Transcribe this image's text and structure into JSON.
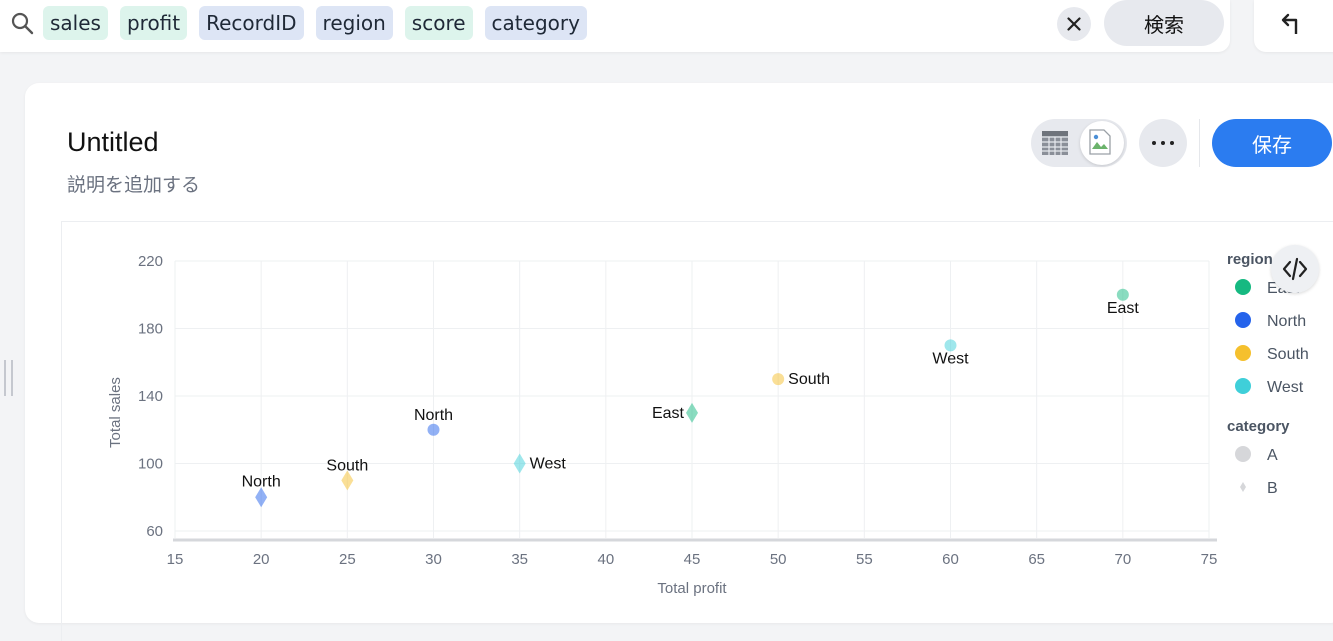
{
  "search": {
    "chips": [
      {
        "label": "sales",
        "kind": "green"
      },
      {
        "label": "profit",
        "kind": "green"
      },
      {
        "label": "RecordID",
        "kind": "blue"
      },
      {
        "label": "region",
        "kind": "blue"
      },
      {
        "label": "score",
        "kind": "green"
      },
      {
        "label": "category",
        "kind": "blue"
      }
    ],
    "search_label": "検索",
    "icons": {
      "search": "search-icon",
      "clear": "close-icon",
      "back": "return-arrow-icon"
    }
  },
  "card": {
    "title": "Untitled",
    "description": "説明を追加する",
    "save_label": "保存",
    "icons": {
      "table_view": "table-icon",
      "chart_view": "broken-image-icon",
      "more": "more-dots-icon",
      "code": "code-icon"
    }
  },
  "colors": {
    "accent": "#2b7cf0",
    "East": "#16b981",
    "North": "#2563eb",
    "South": "#f5c02d",
    "West": "#3fcfd9"
  },
  "chart_data": {
    "type": "scatter",
    "xlabel": "Total profit",
    "ylabel": "Total sales",
    "xlim": [
      15,
      75
    ],
    "ylim": [
      60,
      220
    ],
    "xticks": [
      15,
      20,
      25,
      30,
      35,
      40,
      45,
      50,
      55,
      60,
      65,
      70,
      75
    ],
    "yticks": [
      60,
      100,
      140,
      180,
      220
    ],
    "grid": true,
    "legend_placement": "right",
    "legend": {
      "color_title": "region",
      "color_entries": [
        "East",
        "North",
        "South",
        "West"
      ],
      "shape_title": "category",
      "shape_entries": [
        {
          "label": "A",
          "shape": "circle"
        },
        {
          "label": "B",
          "shape": "diamond"
        }
      ]
    },
    "points": [
      {
        "x": 20,
        "y": 80,
        "region": "North",
        "category": "B",
        "label": "North"
      },
      {
        "x": 25,
        "y": 90,
        "region": "South",
        "category": "B",
        "label": "South"
      },
      {
        "x": 30,
        "y": 120,
        "region": "North",
        "category": "A",
        "label": "North"
      },
      {
        "x": 35,
        "y": 100,
        "region": "West",
        "category": "B",
        "label": "West"
      },
      {
        "x": 45,
        "y": 130,
        "region": "East",
        "category": "B",
        "label": "East"
      },
      {
        "x": 50,
        "y": 150,
        "region": "South",
        "category": "A",
        "label": "South"
      },
      {
        "x": 60,
        "y": 170,
        "region": "West",
        "category": "A",
        "label": "West"
      },
      {
        "x": 70,
        "y": 200,
        "region": "East",
        "category": "A",
        "label": "East"
      }
    ]
  }
}
